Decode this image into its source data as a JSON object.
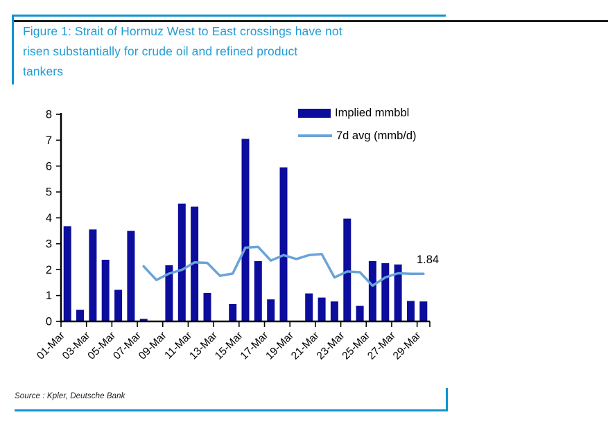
{
  "figure": {
    "title": "Figure 1: Strait of Hormuz West to East crossings have not risen substantially for crude oil and refined product tankers",
    "title_lines": [
      "Figure 1: Strait of Hormuz West to East crossings have not",
      "risen substantially for crude oil and refined product",
      "tankers"
    ],
    "source": "Source : Kpler, Deutsche Bank"
  },
  "colors": {
    "title_text": "#229cd6",
    "border_blue": "#1092cf",
    "rule_black": "#1a1a1a",
    "bar_navy": "#0c0c9d",
    "line_blue": "#69a3d9",
    "axis_black": "#000000"
  },
  "chart_data": {
    "type": "bar",
    "title": "Strait of Hormuz West to East crossings (crude oil and refined product tankers)",
    "xlabel": "",
    "ylabel": "",
    "ylim": [
      0,
      8
    ],
    "yticks": [
      0,
      1,
      2,
      3,
      4,
      5,
      6,
      7,
      8
    ],
    "grid": false,
    "legend_position": "top-right",
    "categories": [
      "01-Mar",
      "02-Mar",
      "03-Mar",
      "04-Mar",
      "05-Mar",
      "06-Mar",
      "07-Mar",
      "08-Mar",
      "09-Mar",
      "10-Mar",
      "11-Mar",
      "12-Mar",
      "13-Mar",
      "14-Mar",
      "15-Mar",
      "16-Mar",
      "17-Mar",
      "18-Mar",
      "19-Mar",
      "20-Mar",
      "21-Mar",
      "22-Mar",
      "23-Mar",
      "24-Mar",
      "25-Mar",
      "26-Mar",
      "27-Mar",
      "28-Mar",
      "29-Mar"
    ],
    "xtick_label_step": 2,
    "xtick_labels_shown": [
      "01-Mar",
      "03-Mar",
      "05-Mar",
      "07-Mar",
      "09-Mar",
      "11-Mar",
      "13-Mar",
      "15-Mar",
      "17-Mar",
      "19-Mar",
      "21-Mar",
      "23-Mar",
      "25-Mar",
      "27-Mar",
      "29-Mar"
    ],
    "series": [
      {
        "name": "Implied mmbbl",
        "type": "bar",
        "color": "#0c0c9d",
        "values": [
          3.68,
          0.45,
          3.55,
          2.38,
          1.22,
          3.5,
          0.1,
          0,
          2.17,
          4.55,
          4.43,
          1.1,
          0,
          0.67,
          7.05,
          2.33,
          0.85,
          5.95,
          0,
          1.08,
          0.92,
          0.77,
          3.97,
          0.6,
          2.33,
          2.25,
          2.2,
          0.79,
          0.77
        ]
      },
      {
        "name": "7d avg (mmb/d)",
        "type": "line",
        "color": "#69a3d9",
        "start_index": 6,
        "values": [
          2.13,
          1.6,
          1.85,
          1.99,
          2.28,
          2.26,
          1.76,
          1.85,
          2.85,
          2.88,
          2.35,
          2.56,
          2.41,
          2.56,
          2.6,
          1.7,
          1.93,
          1.9,
          1.38,
          1.7,
          1.86,
          1.84,
          1.84
        ]
      }
    ],
    "annotation": {
      "text": "1.84",
      "value": 1.84,
      "at_category": "29-Mar"
    }
  }
}
